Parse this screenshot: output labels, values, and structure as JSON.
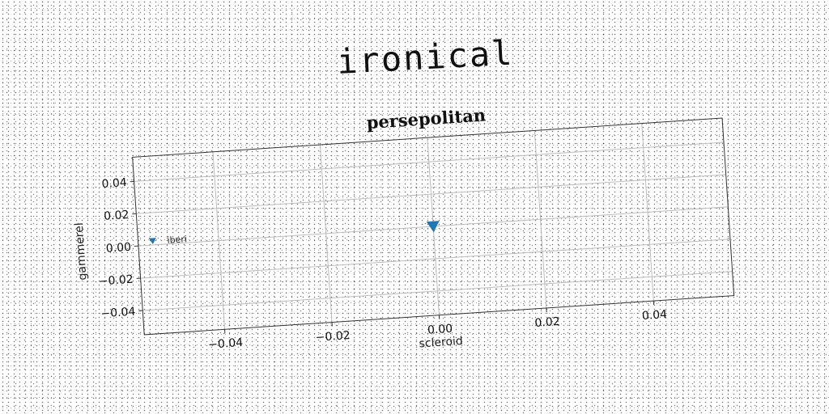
{
  "figure_title": "ironical",
  "chart_data": {
    "type": "scatter",
    "title": "persepolitan",
    "xlabel": "scleroid",
    "ylabel": "gammerel",
    "xlim": [
      -0.055,
      0.055
    ],
    "ylim": [
      -0.055,
      0.055
    ],
    "x_ticks": [
      -0.04,
      -0.02,
      0.0,
      0.02,
      0.04
    ],
    "x_tick_labels": [
      "−0.04",
      "−0.02",
      "0.00",
      "0.02",
      "0.04"
    ],
    "y_ticks": [
      -0.04,
      -0.02,
      0.0,
      0.02,
      0.04
    ],
    "y_tick_labels": [
      "−0.04",
      "−0.02",
      "0.00",
      "0.02",
      "0.04"
    ],
    "grid": true,
    "legend_position": "center-left",
    "series": [
      {
        "name": "iberi",
        "marker": "triangle-down",
        "color": "#1f77b4",
        "points": [
          {
            "x": 0.0,
            "y": 0.0
          }
        ]
      }
    ]
  }
}
